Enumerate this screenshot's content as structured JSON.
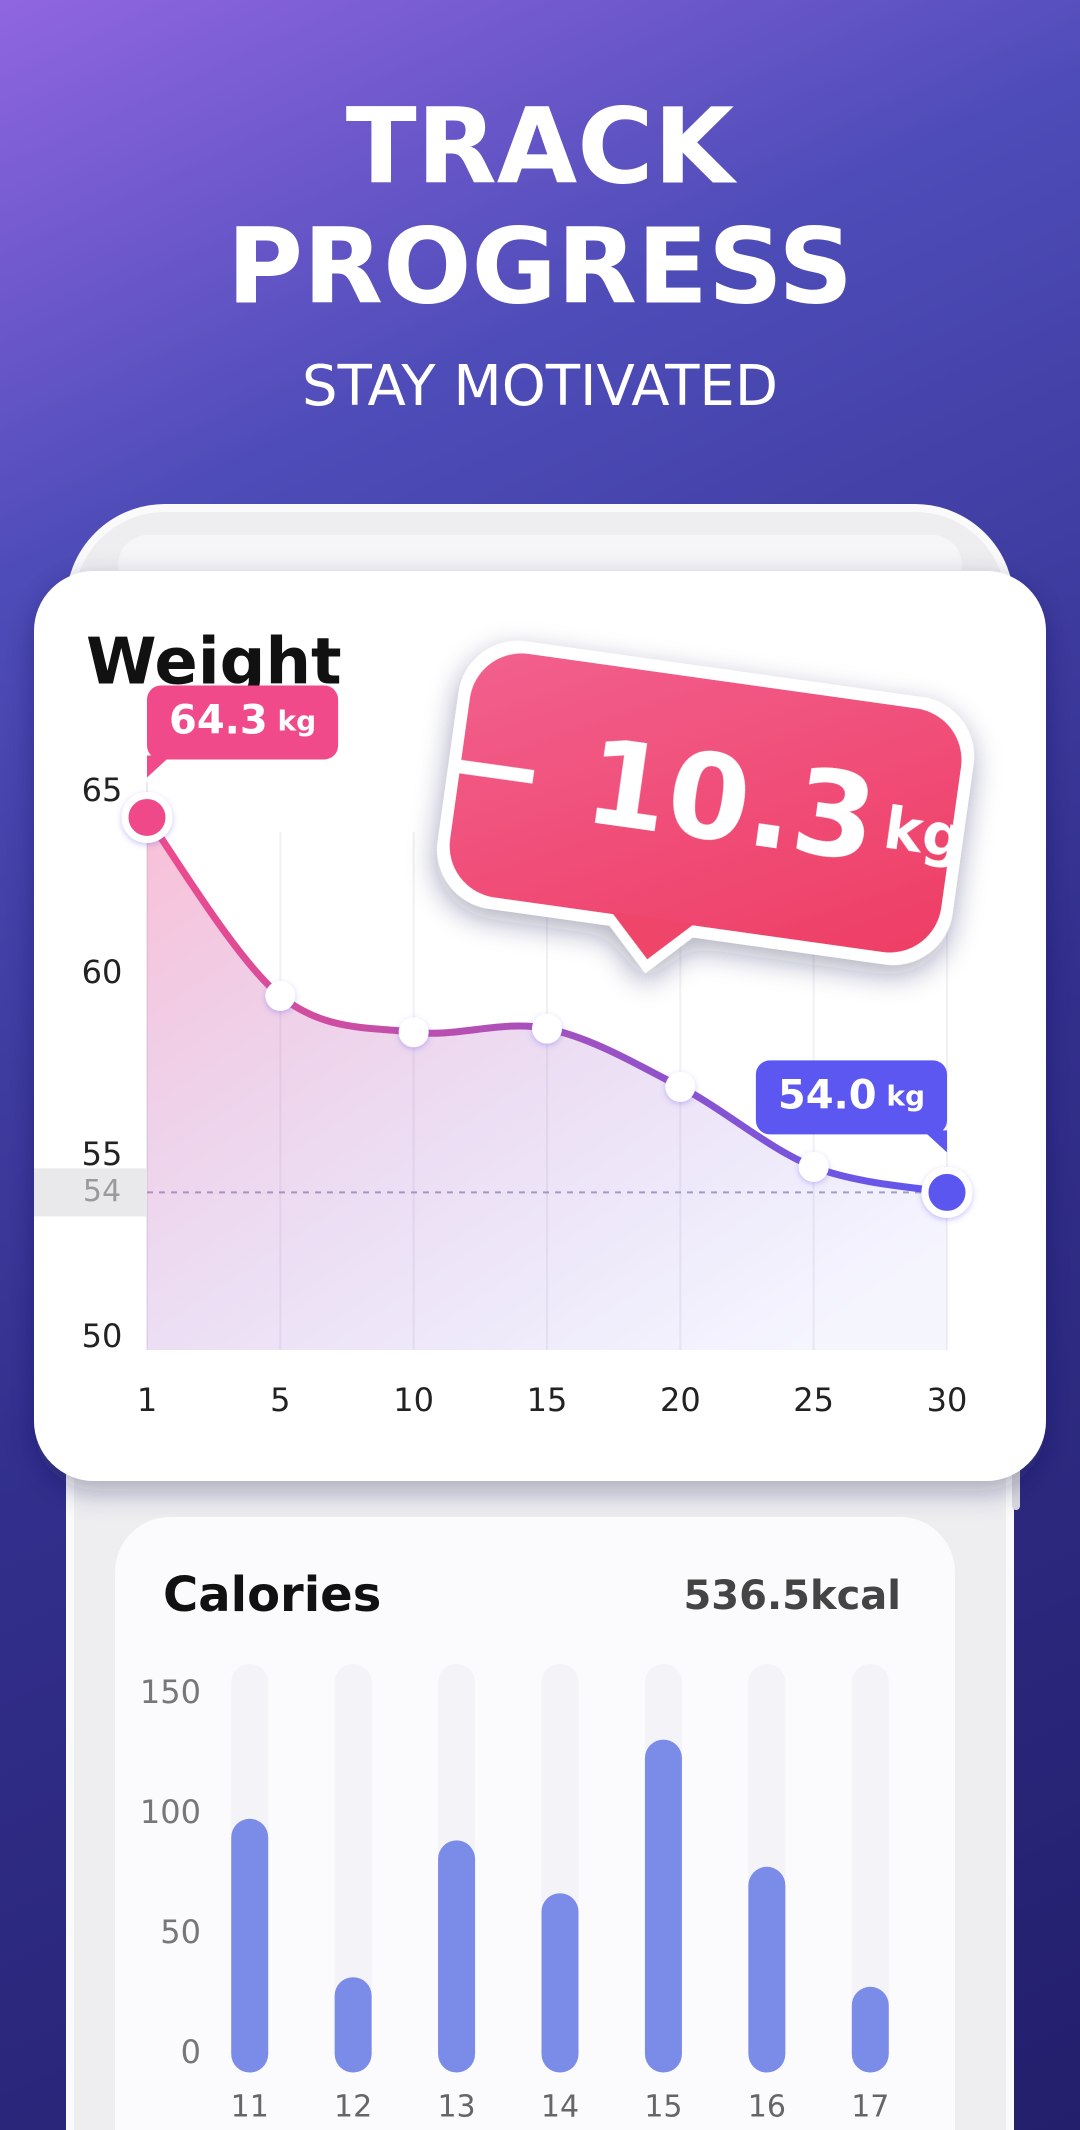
{
  "header": {
    "title": [
      "TRACK",
      "PROGRESS"
    ],
    "subtitle": "STAY MOTIVATED"
  },
  "chart_data": [
    {
      "type": "line",
      "title": "Weight",
      "categories": [
        "1",
        "5",
        "10",
        "15",
        "20",
        "25",
        "30"
      ],
      "values": [
        64.3,
        59.4,
        58.4,
        58.5,
        56.9,
        54.7,
        54.0
      ],
      "value_labels": [
        "64.3 kg",
        null,
        null,
        null,
        null,
        null,
        "54.0 kg"
      ],
      "ylim": [
        50,
        65
      ],
      "yticks": [
        50,
        55,
        60,
        65
      ],
      "reference_line": 54,
      "colors": [
        "#f04a8a",
        "#5b57f0"
      ],
      "grid": true,
      "change_badge": {
        "label": "− 10.3",
        "unit": "kg"
      }
    },
    {
      "type": "bar",
      "title": "Calories",
      "total": "536.5kcal",
      "categories": [
        "11",
        "12",
        "13",
        "14",
        "15",
        "16",
        "17"
      ],
      "values": [
        98,
        32,
        89,
        67,
        131,
        78,
        28
      ],
      "ylim": [
        0,
        150
      ],
      "yticks": [
        0,
        50,
        100,
        150
      ],
      "color": "#7b8ce8"
    }
  ]
}
